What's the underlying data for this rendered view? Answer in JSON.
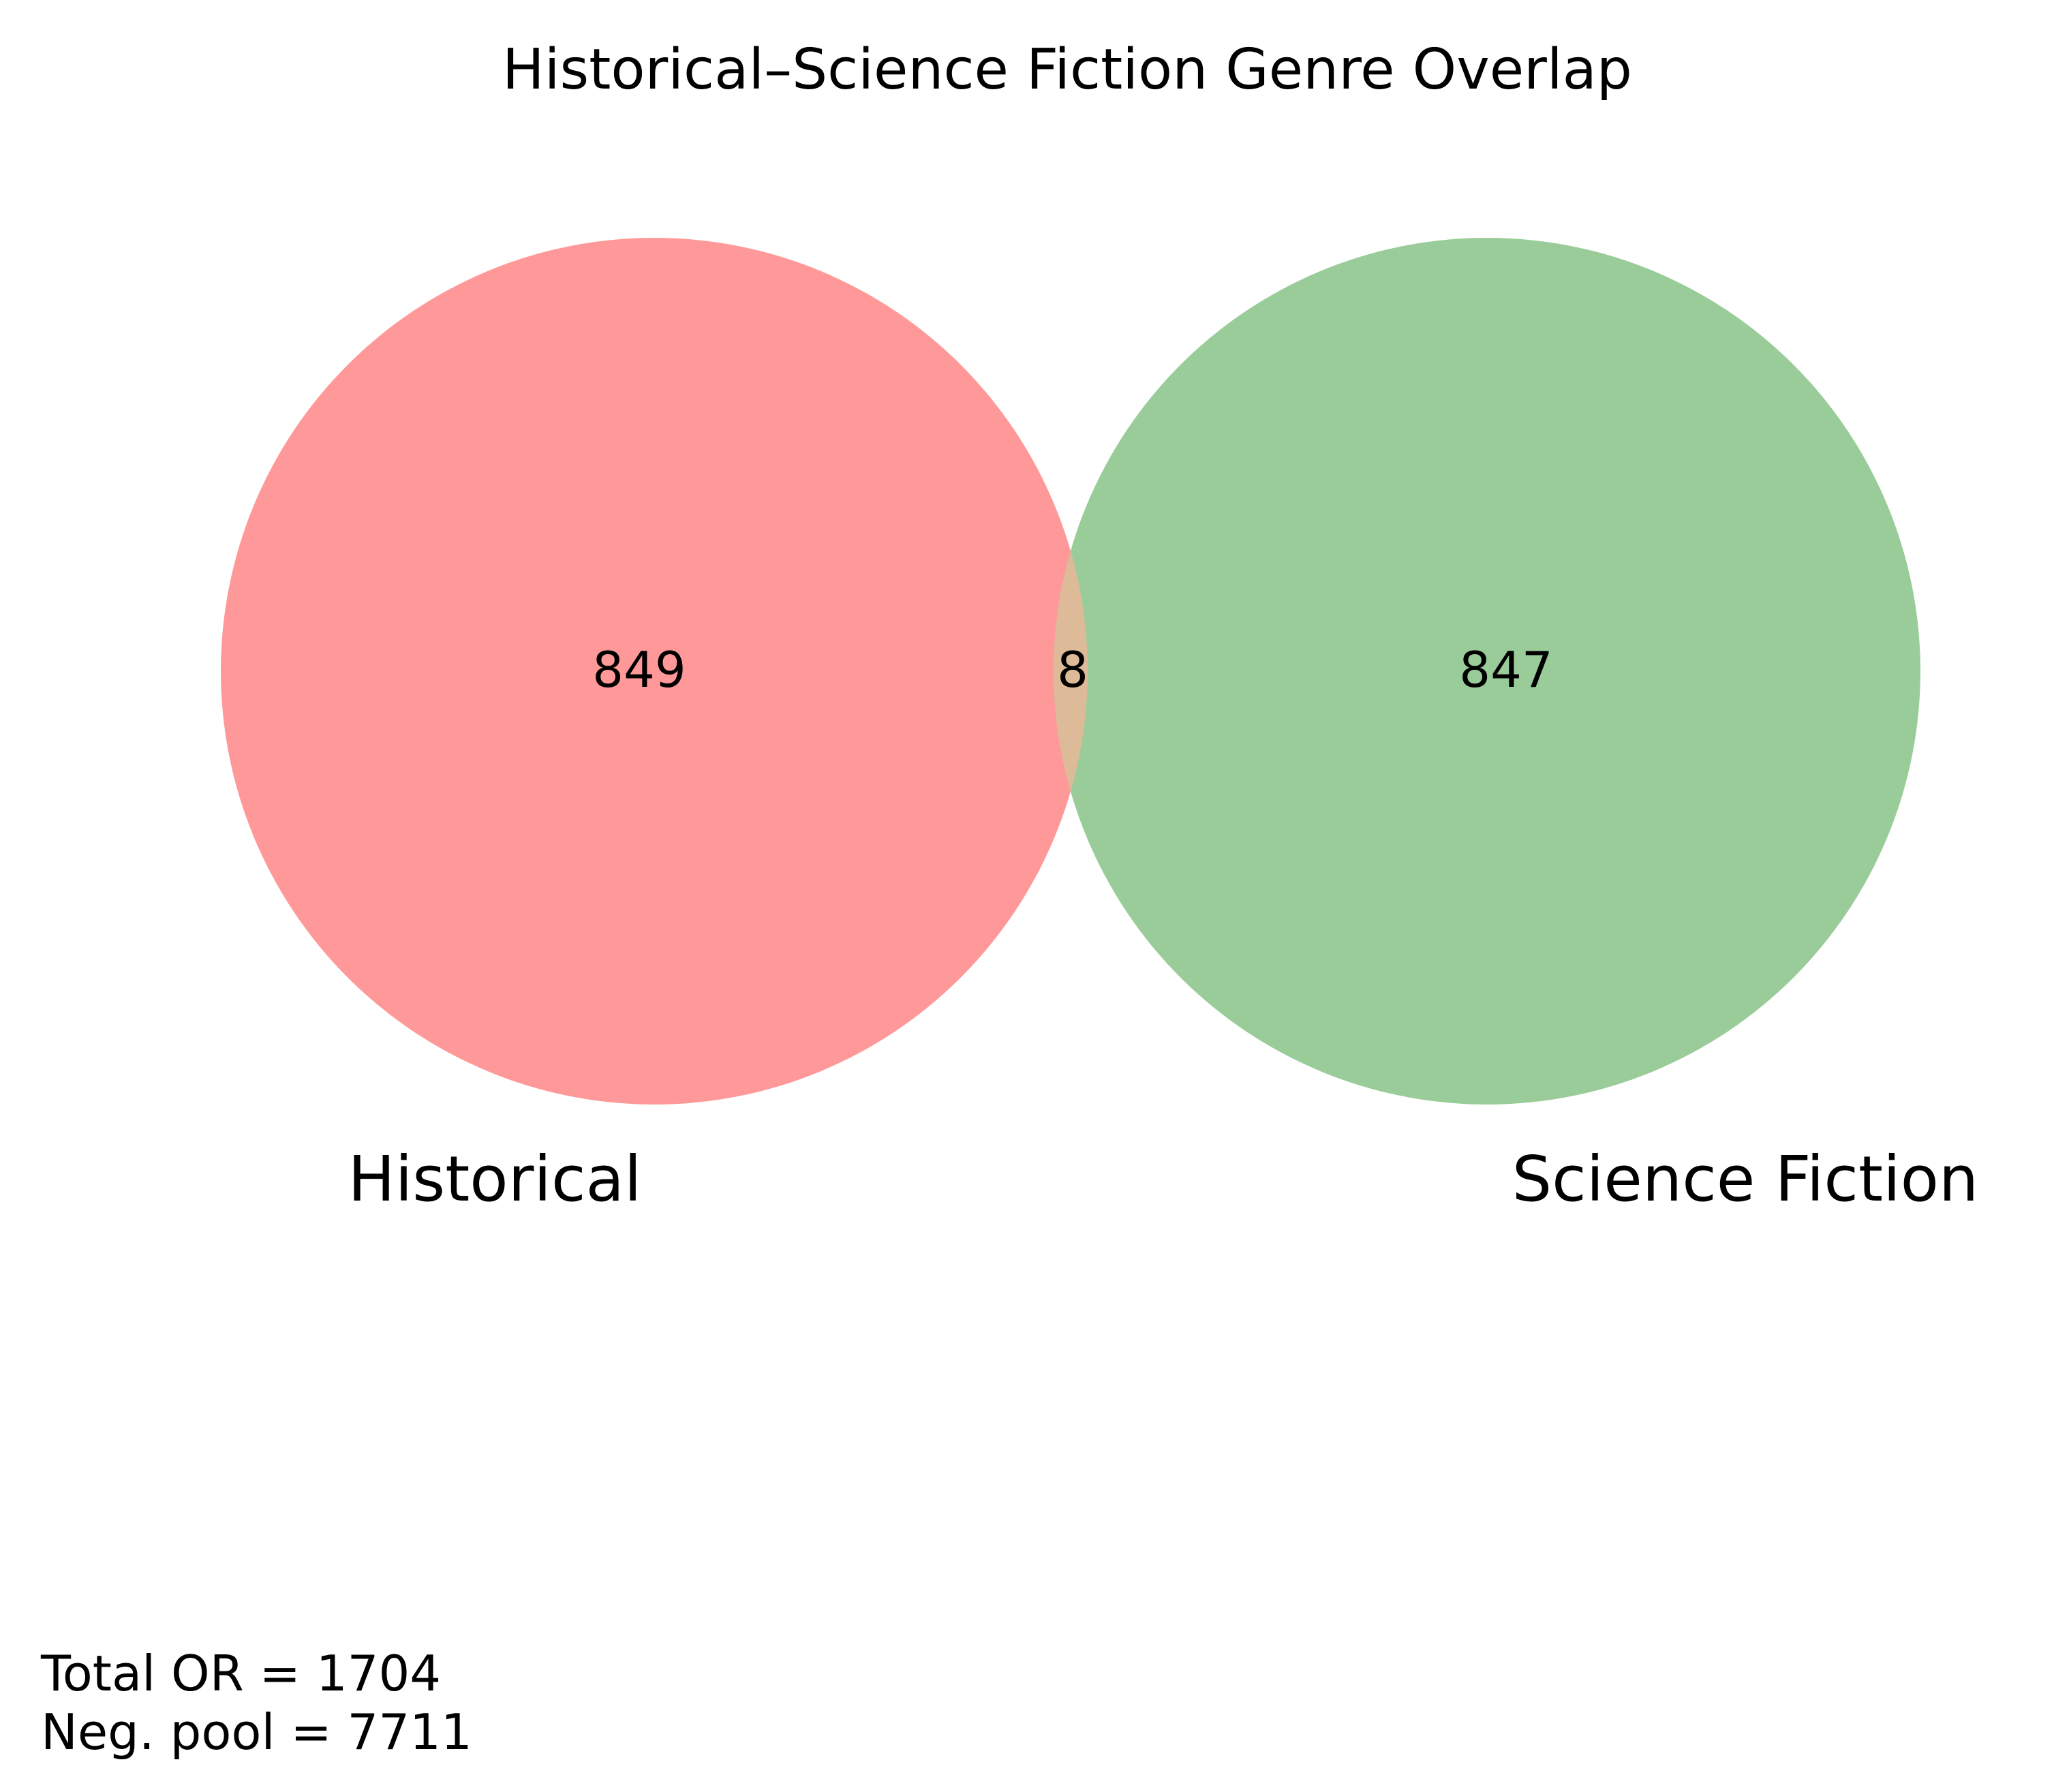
{
  "title": "Historical–Science Fiction Genre Overlap",
  "sets": [
    {
      "key": "left",
      "label": "Historical",
      "only_count": "849",
      "color": "#ff9999",
      "opacity": 1.0
    },
    {
      "key": "right",
      "label": "Science Fiction",
      "only_count": "847",
      "color": "#99cc99",
      "opacity": 1.0
    }
  ],
  "intersection": {
    "count": "8",
    "color": "#ddbb99"
  },
  "notes": {
    "total": "Total OR = 1704",
    "pool": "Neg. pool = 7711"
  }
}
